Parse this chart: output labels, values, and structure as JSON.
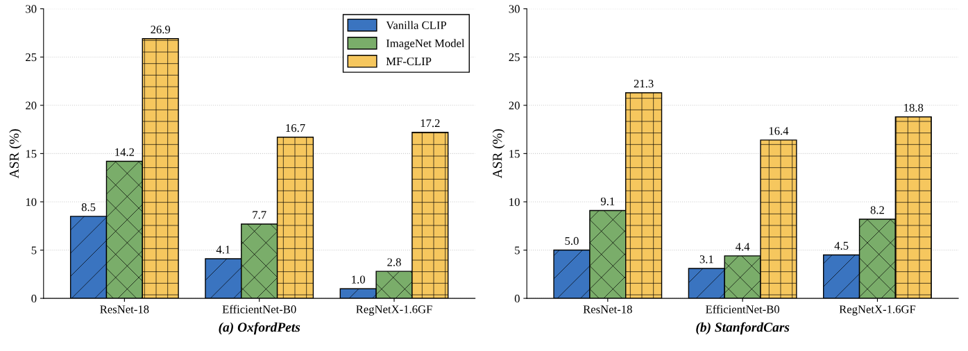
{
  "chart_data": [
    {
      "type": "bar",
      "title": "(a) OxfordPets",
      "ylabel": "ASR (%)",
      "categories": [
        "ResNet-18",
        "EfficientNet-B0",
        "RegNetX-1.6GF"
      ],
      "series": [
        {
          "name": "Vanilla CLIP",
          "color": "#3a74c0",
          "values": [
            8.5,
            4.1,
            1.0
          ],
          "value_labels": [
            "8.5",
            "4.1",
            "1.0"
          ]
        },
        {
          "name": "ImageNet Model",
          "color": "#7aad6a",
          "values": [
            14.2,
            7.7,
            2.8
          ],
          "value_labels": [
            "14.2",
            "7.7",
            "2.8"
          ]
        },
        {
          "name": "MF-CLIP",
          "color": "#f6c75e",
          "values": [
            26.9,
            16.7,
            17.2
          ],
          "value_labels": [
            "26.9",
            "16.7",
            "17.2"
          ]
        }
      ],
      "ylim": [
        0,
        30
      ],
      "yticks": [
        0,
        5,
        10,
        15,
        20,
        25,
        30
      ],
      "grid": "y",
      "legend": "top right"
    },
    {
      "type": "bar",
      "title": "(b) StanfordCars",
      "ylabel": "ASR (%)",
      "categories": [
        "ResNet-18",
        "EfficientNet-B0",
        "RegNetX-1.6GF"
      ],
      "series": [
        {
          "color": "#3a74c0",
          "values": [
            5.0,
            3.1,
            4.5
          ],
          "value_labels": [
            "5.0",
            "3.1",
            "4.5"
          ]
        },
        {
          "color": "#7aad6a",
          "values": [
            9.1,
            4.4,
            8.2
          ],
          "value_labels": [
            "9.1",
            "4.4",
            "8.2"
          ]
        },
        {
          "color": "#f6c75e",
          "values": [
            21.3,
            16.4,
            18.8
          ],
          "value_labels": [
            "21.3",
            "16.4",
            "18.8"
          ]
        }
      ],
      "ylim": [
        0,
        30
      ],
      "yticks": [
        0,
        5,
        10,
        15,
        20,
        25,
        30
      ],
      "grid": "y"
    }
  ]
}
